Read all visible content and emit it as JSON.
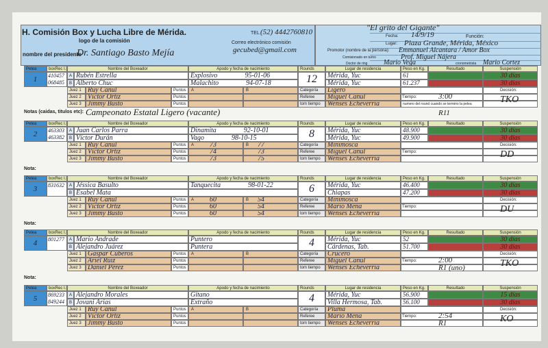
{
  "header": {
    "title": "H. Comisión Box y Lucha Libre de Mérida.",
    "logo": "logo de la comisión",
    "tel_label": "TEL",
    "tel": "(52) 4442760810",
    "email_label": "Correo electrónico comisión",
    "email": "gecubed@gmail.com",
    "president_label": "nombre del presidente",
    "president": "Dr. Santiago Basto Mejía",
    "event": "\"El grito del Gigante\"",
    "fecha_label": "Fecha:",
    "fecha": "14/9/19",
    "funcion_label": "Función:",
    "lugar_label": "Lugar:",
    "lugar": "Plaza Grande, Mérida, México",
    "promotor_label": "Promotor (nombre de la persona):",
    "promotor": "Emmanuel Alcantara / Amor Box",
    "comisionado_label": "Comisionado en turno",
    "comisionado": "Prof. Miguel Nájera",
    "doctor_label": "Doctor de ring",
    "doctor": "Mario Vega",
    "crono_label": "cronometrista",
    "crono": "Mario Cortez"
  },
  "labels": {
    "pelea": "Pelea",
    "boxrec": "boxRec I.D",
    "nombre": "Nombre del Boxeador",
    "apodo": "Apodo y fecha de nacimiento",
    "rounds": "Rounds",
    "lugar": "Lugar de residencia",
    "peso": "Peso en Kg.",
    "resultado": "Resultado",
    "suspension": "Suspensión",
    "categoria": "Categoría",
    "referee": "Referee",
    "tomtiempo": "tom tiempo",
    "tiempo": "Tiempo:",
    "decision": "Decisión:",
    "jueces": [
      "Juez 1",
      "Juez 2",
      "Juez 3"
    ],
    "puntos": "Puntos",
    "corners": [
      "A",
      "B"
    ],
    "notas": "Notas (caidas, titulos etc):",
    "nota": "Nota:",
    "round_note": "numero del round cuando se termino la pelea"
  },
  "bouts": [
    {
      "pelea": "1",
      "ids": [
        "410457",
        "068485"
      ],
      "boxers": [
        {
          "name": "Rubén Estrella",
          "alias": "Explosivo",
          "dob": "95-01-06",
          "residence": "Mérida, Yuc",
          "weight": "61",
          "suspension": "30 días"
        },
        {
          "name": "Alberto Chuc",
          "alias": "Malachito",
          "dob": "94-07-18",
          "residence": "Mérida, Yuc",
          "weight": "61.237",
          "suspension": "30 días"
        }
      ],
      "rounds": "12",
      "judges": [
        {
          "name": "Ruy Canul"
        },
        {
          "name": "Víctor Ortiz"
        },
        {
          "name": "Jimmy Busto"
        }
      ],
      "categoria": "Ligero",
      "referee": "Miguel Canul",
      "timekeeper": "Wenses Echeverría",
      "tiempo": "3:00",
      "round": "R11",
      "decision": "TKO",
      "note": "Campeonato Estatal Ligero (vacante)"
    },
    {
      "pelea": "2",
      "ids": [
        "463303",
        "463382"
      ],
      "boxers": [
        {
          "name": "Juan Carlos Parra",
          "alias": "Dinamita",
          "dob": "92-10-01",
          "residence": "Mérida, Yuc",
          "weight": "48.900",
          "suspension": "30 días"
        },
        {
          "name": "Víctor Durán",
          "alias": "Vago",
          "dob": "98-10-15",
          "residence": "Mérida, Yuc",
          "weight": "49.900",
          "suspension": "30 días"
        }
      ],
      "rounds": "8",
      "judges": [
        {
          "name": "Ruy Canul",
          "a": 73,
          "b": 77
        },
        {
          "name": "Víctor Ortiz",
          "a": 74,
          "b": 73
        },
        {
          "name": "Jimmy Busto",
          "a": 73,
          "b": 75
        }
      ],
      "categoria": "Minimosca",
      "referee": "Miguel Canul",
      "timekeeper": "Wenses Echeverría",
      "decision": "DD"
    },
    {
      "pelea": "3",
      "ids": [
        "831632"
      ],
      "boxers": [
        {
          "name": "Jéssica Basulto",
          "alias": "Tanquecita",
          "dob": "98-01-22",
          "residence": "Mérida, Yuc",
          "weight": "46.400",
          "suspension": "30 días"
        },
        {
          "name": "Esabel Mata",
          "residence": "Chiapas",
          "weight": "47.200",
          "suspension": "30 días"
        }
      ],
      "rounds": "6",
      "judges": [
        {
          "name": "Ruy Canul",
          "a": 60,
          "b": 54
        },
        {
          "name": "Víctor Ortiz",
          "a": 60,
          "b": 54
        },
        {
          "name": "Jimmy Busto",
          "a": 60,
          "b": 54
        }
      ],
      "categoria": "Minimosca",
      "referee": "Mario Mena",
      "timekeeper": "Wenses Echeverría",
      "decision": "DU"
    },
    {
      "pelea": "4",
      "ids": [
        "801277"
      ],
      "boxers": [
        {
          "name": "Mario Andrade",
          "alias": "Puntero",
          "residence": "Mérida, Yuc",
          "weight": "52",
          "suspension": "30 días"
        },
        {
          "name": "Alejandro Juárez",
          "alias": "Puntera",
          "residence": "Cárdenas, Tab.",
          "weight": "51.700",
          "suspension": "30 días"
        }
      ],
      "rounds": "4",
      "judges": [
        {
          "name": "Gaspar Cuberos"
        },
        {
          "name": "Ariel Ruiz"
        },
        {
          "name": "Daniel Pérez"
        }
      ],
      "categoria": "Crucero",
      "referee": "Miguel Canul",
      "timekeeper": "Wenses Echeverría",
      "tiempo": "2:00",
      "round": "R1 (uno)",
      "decision": "TKO"
    },
    {
      "pelea": "5",
      "ids": [
        "869233",
        "849244"
      ],
      "boxers": [
        {
          "name": "Alejandro Morales",
          "alias": "Gitano",
          "residence": "Mérida, Yuc",
          "weight": "56.900",
          "suspension": "15 días"
        },
        {
          "name": "Jovani Arias",
          "alias": "Extraño",
          "residence": "Villa Hermosa, Tab.",
          "weight": "56.100",
          "suspension": "30 días"
        }
      ],
      "rounds": "4",
      "judges": [
        {
          "name": "Ruy Canul"
        },
        {
          "name": "Víctor Ortiz"
        },
        {
          "name": "Jimmy Busto"
        }
      ],
      "categoria": "Pluma",
      "referee": "Mario Mena",
      "timekeeper": "Wenses Echeverría",
      "tiempo": "2:54",
      "round": "R1",
      "decision": "KO"
    }
  ]
}
